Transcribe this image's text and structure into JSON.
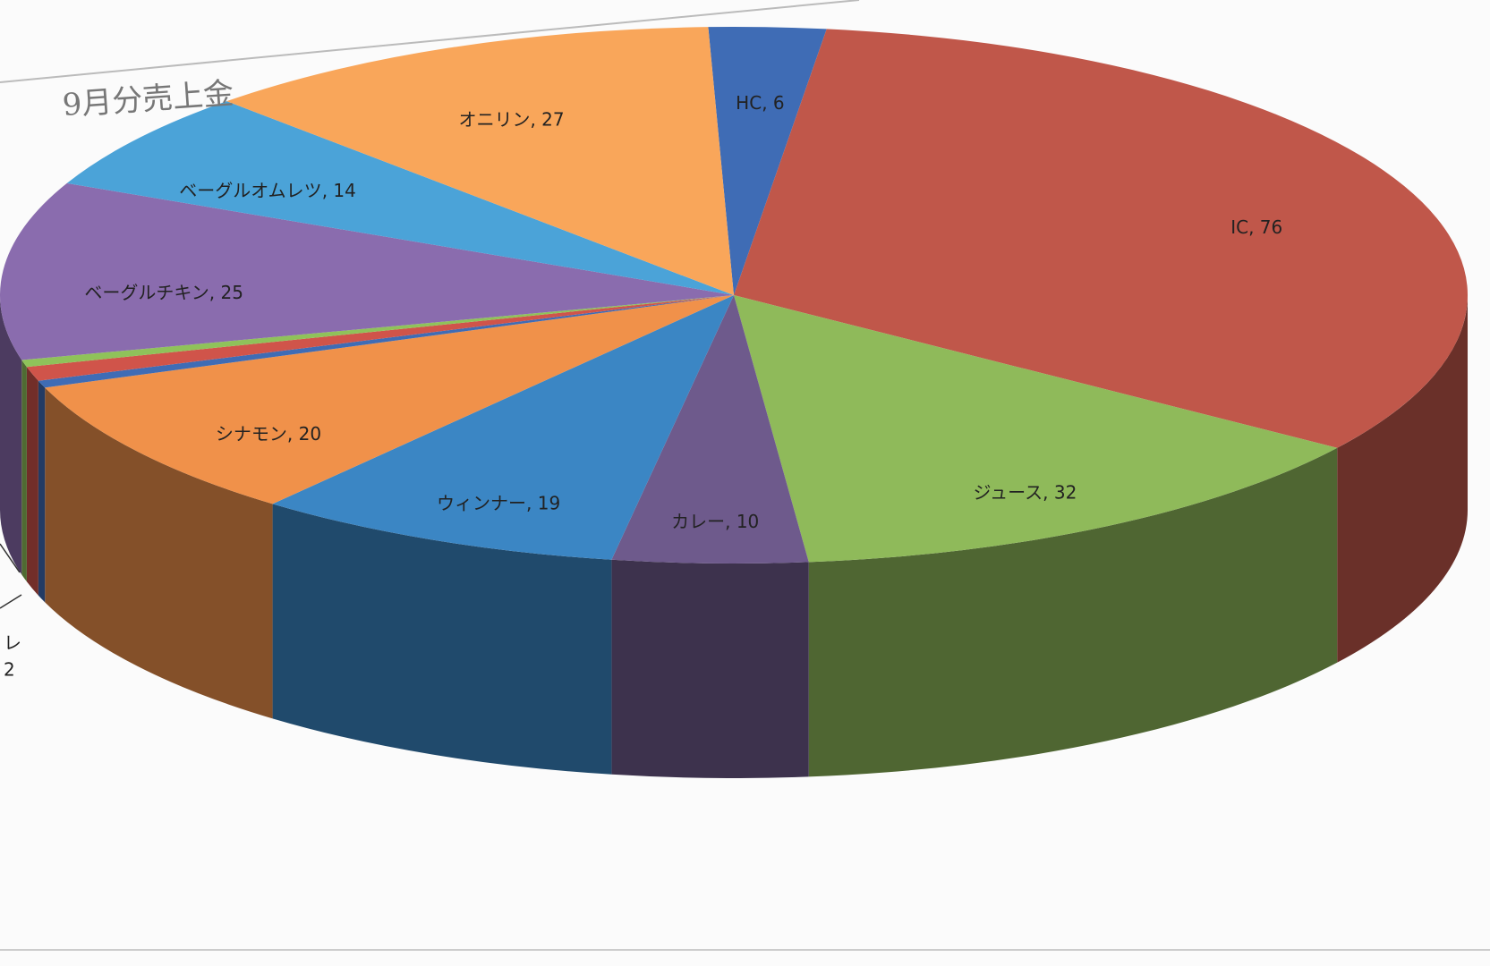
{
  "chart_data": {
    "type": "pie3d",
    "title": "9月分売上金",
    "categories": [
      "HC",
      "IC",
      "ジュース",
      "カレー",
      "ウィンナー",
      "シナモン",
      null,
      null,
      null,
      "ベーグルチキン",
      "ベーグルオムレツ",
      "オニリン"
    ],
    "values": [
      6,
      76,
      32,
      10,
      19,
      20,
      1,
      2,
      1,
      25,
      14,
      27
    ],
    "colors": [
      "#3f6cb5",
      "#c0574a",
      "#8fba5a",
      "#6e5a8c",
      "#3b86c4",
      "#f0914a",
      "#3f6cb5",
      "#d0544a",
      "#8fc25a",
      "#8a6cae",
      "#4ba3d8",
      "#f9a65a"
    ],
    "label_separator": ", ",
    "annotations": [
      "レ",
      "2"
    ]
  }
}
